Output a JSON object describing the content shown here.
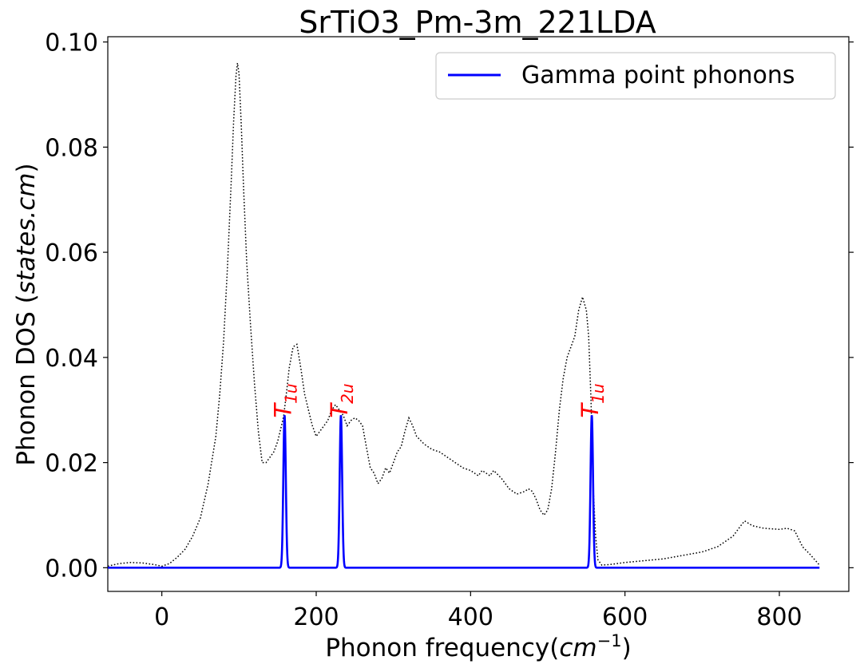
{
  "colors": {
    "dos_line": "#000000",
    "gamma_line": "#0000ff",
    "peak_label": "#ff0000",
    "legend_border": "#cccccc"
  },
  "chart_data": {
    "type": "line",
    "title": "SrTiO3_Pm-3m_221LDA",
    "xlabel_text": "Phonon frequency(",
    "xlabel_math": "cm",
    "xlabel_sup": "−1",
    "xlabel_close": ")",
    "ylabel_text": "Phonon DOS (",
    "ylabel_math": "states.cm",
    "ylabel_close": ")",
    "xlim": [
      -70,
      890
    ],
    "ylim": [
      -0.0045,
      0.101
    ],
    "xticks": [
      0,
      200,
      400,
      600,
      800
    ],
    "xtick_labels": [
      "0",
      "200",
      "400",
      "600",
      "800"
    ],
    "yticks": [
      0.0,
      0.02,
      0.04,
      0.06,
      0.08,
      0.1
    ],
    "ytick_labels": [
      "0.00",
      "0.02",
      "0.04",
      "0.06",
      "0.08",
      "0.10"
    ],
    "legend_position": "upper-right",
    "grid": false,
    "series": [
      {
        "name": "Gamma point phonons",
        "style": "solid",
        "color": "#0000ff",
        "peaks": [
          {
            "x": 159,
            "height": 0.029,
            "width": 1.6
          },
          {
            "x": 232,
            "height": 0.029,
            "width": 1.6
          },
          {
            "x": 557,
            "height": 0.029,
            "width": 1.6
          }
        ],
        "x_range": [
          -70,
          852
        ]
      },
      {
        "style": "dotted",
        "color": "#000000",
        "x": [
          -70,
          -55,
          -40,
          -25,
          -10,
          0,
          10,
          20,
          30,
          40,
          50,
          60,
          70,
          75,
          80,
          85,
          90,
          93,
          96,
          98,
          100,
          103,
          106,
          110,
          115,
          120,
          125,
          130,
          135,
          140,
          145,
          150,
          155,
          158,
          162,
          165,
          170,
          175,
          180,
          185,
          190,
          195,
          200,
          205,
          210,
          215,
          220,
          225,
          230,
          235,
          240,
          245,
          250,
          255,
          260,
          265,
          270,
          275,
          280,
          285,
          290,
          295,
          300,
          305,
          310,
          315,
          320,
          325,
          330,
          340,
          350,
          360,
          370,
          380,
          390,
          400,
          410,
          415,
          420,
          425,
          430,
          440,
          450,
          460,
          470,
          475,
          480,
          485,
          490,
          495,
          500,
          505,
          510,
          515,
          520,
          525,
          530,
          535,
          540,
          545,
          550,
          553,
          556,
          559,
          562,
          565,
          570,
          580,
          600,
          650,
          700,
          720,
          740,
          750,
          755,
          765,
          780,
          800,
          810,
          820,
          830,
          840,
          852
        ],
        "y": [
          0.0003,
          0.0008,
          0.001,
          0.0009,
          0.0006,
          0.0003,
          0.0008,
          0.002,
          0.0035,
          0.006,
          0.0095,
          0.016,
          0.025,
          0.033,
          0.043,
          0.057,
          0.074,
          0.085,
          0.0935,
          0.096,
          0.094,
          0.084,
          0.072,
          0.058,
          0.046,
          0.035,
          0.026,
          0.02,
          0.02,
          0.021,
          0.022,
          0.024,
          0.027,
          0.029,
          0.034,
          0.038,
          0.042,
          0.0425,
          0.038,
          0.033,
          0.03,
          0.027,
          0.025,
          0.026,
          0.027,
          0.028,
          0.03,
          0.031,
          0.03,
          0.029,
          0.027,
          0.028,
          0.0285,
          0.028,
          0.027,
          0.023,
          0.019,
          0.018,
          0.016,
          0.017,
          0.019,
          0.018,
          0.02,
          0.022,
          0.023,
          0.026,
          0.0285,
          0.027,
          0.025,
          0.0235,
          0.0225,
          0.022,
          0.021,
          0.02,
          0.019,
          0.0185,
          0.0175,
          0.0185,
          0.018,
          0.0175,
          0.0185,
          0.017,
          0.015,
          0.014,
          0.0145,
          0.015,
          0.0145,
          0.013,
          0.011,
          0.01,
          0.011,
          0.015,
          0.022,
          0.03,
          0.036,
          0.04,
          0.042,
          0.044,
          0.049,
          0.0515,
          0.049,
          0.044,
          0.032,
          0.015,
          0.006,
          0.0015,
          0.0005,
          0.0006,
          0.001,
          0.0017,
          0.003,
          0.004,
          0.006,
          0.008,
          0.0089,
          0.008,
          0.0075,
          0.0073,
          0.0075,
          0.007,
          0.004,
          0.0025,
          0.0005
        ]
      }
    ],
    "peak_annotations": [
      {
        "x": 159,
        "main": "T",
        "sub": "1u"
      },
      {
        "x": 232,
        "main": "T",
        "sub": "2u"
      },
      {
        "x": 557,
        "main": "T",
        "sub": "1u"
      }
    ]
  }
}
